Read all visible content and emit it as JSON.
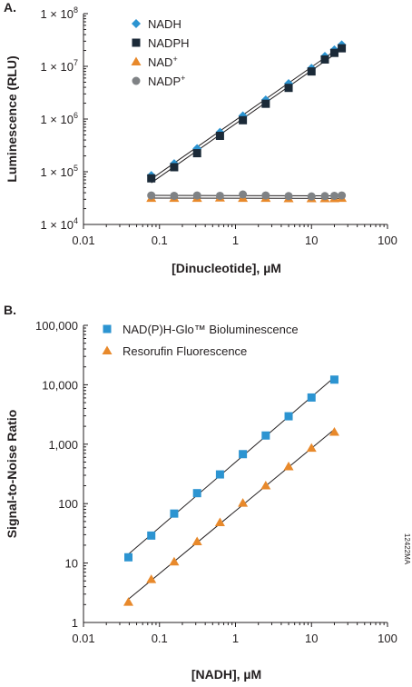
{
  "figure_code": "12422MA",
  "colors": {
    "nadh": "#2c94d1",
    "nadph": "#1b2a38",
    "nad": "#e8892b",
    "nadp": "#7f8285",
    "nadph_glo": "#2c94d1",
    "resorufin": "#e8892b",
    "fit_line": "#231f20",
    "axis": "#231f20"
  },
  "chart_data": [
    {
      "panel": "A.",
      "type": "scatter",
      "xscale": "log",
      "yscale": "log",
      "xlabel": "[Dinucleotide], µM",
      "ylabel": "Luminescence (RLU)",
      "xlim": [
        0.01,
        100
      ],
      "ylim": [
        10000,
        100000000
      ],
      "xticks": [
        0.01,
        0.1,
        1,
        10,
        100
      ],
      "xtick_labels": [
        "0.01",
        "0.1",
        "1",
        "10",
        "100"
      ],
      "yticks": [
        10000,
        100000,
        1000000,
        10000000,
        100000000
      ],
      "ytick_labels": [
        {
          "base": "1 × 10",
          "exp": "4"
        },
        {
          "base": "1 × 10",
          "exp": "5"
        },
        {
          "base": "1 × 10",
          "exp": "6"
        },
        {
          "base": "1 × 10",
          "exp": "7"
        },
        {
          "base": "1 × 10",
          "exp": "8"
        }
      ],
      "grid": false,
      "legend_position": "top-left",
      "series": [
        {
          "name": "NADH",
          "marker": "diamond",
          "color_key": "nadh",
          "fit_line": true,
          "x": [
            0.078,
            0.156,
            0.3125,
            0.625,
            1.25,
            2.5,
            5,
            10,
            15,
            20,
            25
          ],
          "y": [
            85000,
            142000,
            275000,
            560000,
            1150000,
            2300000,
            4700000,
            9200000,
            15500000,
            20500000,
            25500000
          ]
        },
        {
          "name": "NADPH",
          "marker": "square",
          "color_key": "nadph",
          "fit_line": true,
          "x": [
            0.078,
            0.156,
            0.3125,
            0.625,
            1.25,
            2.5,
            5,
            10,
            15,
            20,
            25
          ],
          "y": [
            75000,
            122000,
            225000,
            480000,
            950000,
            1950000,
            3900000,
            8000000,
            13500000,
            18000000,
            22000000
          ]
        },
        {
          "name": "NAD+",
          "name_parts": [
            "NAD",
            "+"
          ],
          "marker": "triangle",
          "color_key": "nad",
          "fit_line": true,
          "x": [
            0.078,
            0.156,
            0.3125,
            0.625,
            1.25,
            2.5,
            5,
            10,
            15,
            20,
            25
          ],
          "y": [
            31500,
            31500,
            31500,
            32000,
            31500,
            31500,
            31000,
            31000,
            31000,
            31000,
            31500
          ]
        },
        {
          "name": "NADP+",
          "name_parts": [
            "NADP",
            "+"
          ],
          "marker": "circle",
          "color_key": "nadp",
          "fit_line": true,
          "x": [
            0.078,
            0.156,
            0.3125,
            0.625,
            1.25,
            2.5,
            5,
            10,
            15,
            20,
            25
          ],
          "y": [
            35500,
            35000,
            35500,
            35000,
            37000,
            35500,
            34500,
            34000,
            34500,
            35000,
            35500
          ]
        }
      ]
    },
    {
      "panel": "B.",
      "type": "scatter",
      "xscale": "log",
      "yscale": "log",
      "xlabel": "[NADH], µM",
      "ylabel": "Signal-to-Noise Ratio",
      "xlim": [
        0.01,
        100
      ],
      "ylim": [
        1,
        100000
      ],
      "xticks": [
        0.01,
        0.1,
        1,
        10,
        100
      ],
      "xtick_labels": [
        "0.01",
        "0.1",
        "1",
        "10",
        "100"
      ],
      "yticks": [
        1,
        10,
        100,
        1000,
        10000,
        100000
      ],
      "ytick_labels": [
        "1",
        "10",
        "100",
        "1,000",
        "10,000",
        "100,000"
      ],
      "grid": false,
      "legend_position": "top-left",
      "series": [
        {
          "name": "NAD(P)H-Glo™ Bioluminescence",
          "marker": "square",
          "color_key": "nadph_glo",
          "fit_line": true,
          "x": [
            0.039,
            0.078,
            0.156,
            0.3125,
            0.625,
            1.25,
            2.5,
            5,
            10,
            20
          ],
          "y": [
            12.5,
            29,
            68,
            150,
            310,
            680,
            1400,
            2950,
            6100,
            12200
          ]
        },
        {
          "name": "Resorufin Fluorescence",
          "marker": "triangle",
          "color_key": "resorufin",
          "fit_line": true,
          "x": [
            0.039,
            0.078,
            0.156,
            0.3125,
            0.625,
            1.25,
            2.5,
            5,
            10,
            20
          ],
          "y": [
            2.2,
            5.3,
            10.5,
            23,
            48,
            102,
            200,
            420,
            860,
            1600
          ]
        }
      ]
    }
  ]
}
